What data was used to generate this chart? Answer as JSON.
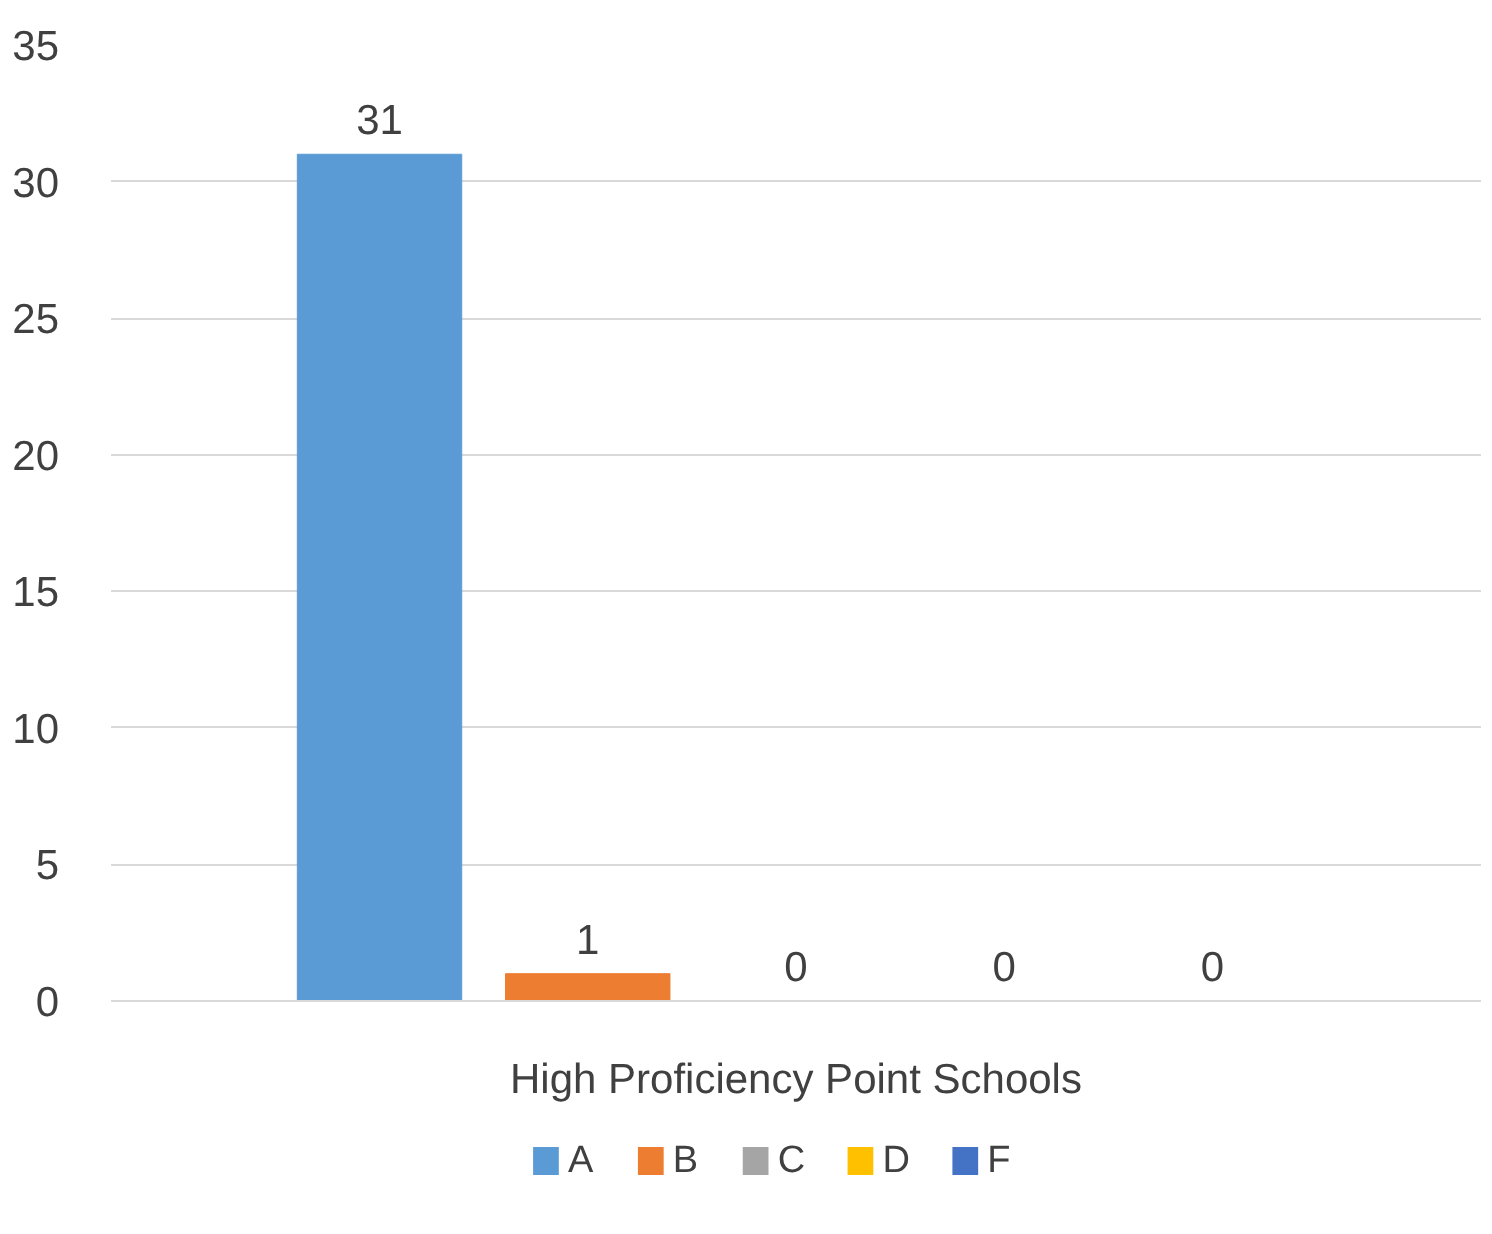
{
  "chart_data": {
    "type": "bar",
    "categories": [
      "High Proficiency Point Schools"
    ],
    "series": [
      {
        "name": "A",
        "color": "#5b9bd5",
        "values": [
          31
        ]
      },
      {
        "name": "B",
        "color": "#ed7d31",
        "values": [
          1
        ]
      },
      {
        "name": "C",
        "color": "#a5a5a5",
        "values": [
          0
        ]
      },
      {
        "name": "D",
        "color": "#ffc000",
        "values": [
          0
        ]
      },
      {
        "name": "F",
        "color": "#4472c4",
        "values": [
          0
        ]
      }
    ],
    "ylim": [
      0,
      35
    ],
    "yticks": [
      0,
      5,
      10,
      15,
      20,
      25,
      30,
      35
    ],
    "grid": "y",
    "legend": "bottom",
    "data_labels": true
  }
}
